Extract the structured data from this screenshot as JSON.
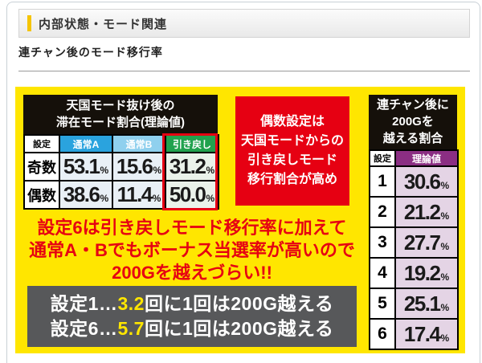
{
  "header": {
    "section_title": "内部状態・モード関連",
    "subtitle": "連チャン後のモード移行率"
  },
  "unit": "%",
  "left_table": {
    "title": [
      "天国モード抜け後の",
      "滞在モード割合(理論値)"
    ],
    "headers": [
      "設定",
      "通常A",
      "通常B",
      "引き戻し"
    ],
    "rows": [
      {
        "label": "奇数",
        "values": [
          "53.1",
          "15.6",
          "31.2"
        ]
      },
      {
        "label": "偶数",
        "values": [
          "38.6",
          "11.4",
          "50.0"
        ]
      }
    ]
  },
  "side_note": {
    "lines": [
      "偶数設定は",
      "天国モードからの",
      "引き戻しモード",
      "移行割合が高め"
    ]
  },
  "right_table": {
    "title": [
      "連チャン後に",
      "200Gを",
      "越える割合"
    ],
    "headers": [
      "設定",
      "理論値"
    ],
    "rows": [
      {
        "setting": "1",
        "value": "30.6"
      },
      {
        "setting": "2",
        "value": "21.2"
      },
      {
        "setting": "3",
        "value": "27.7"
      },
      {
        "setting": "4",
        "value": "19.2"
      },
      {
        "setting": "5",
        "value": "25.1"
      },
      {
        "setting": "6",
        "value": "17.4"
      }
    ]
  },
  "warning": {
    "lines": [
      "設定6は引き戻しモード移行率に加えて",
      "通常A・Bでもボーナス当選率が高いので",
      "200Gを越えづらい!!"
    ]
  },
  "summary": {
    "lines": [
      {
        "pre": "設定1…",
        "num": "3.2",
        "post": "回に1回は200G越える"
      },
      {
        "pre": "設定6…",
        "num": "5.7",
        "post": "回に1回は200G越える"
      }
    ]
  },
  "colors": {
    "accent_yellow": "#ffe600",
    "accent_red": "#e60012",
    "normal_a_blue": "#2aa3de",
    "normal_b_blue": "#8fd0ee",
    "hikimodoshi_green": "#21a24e",
    "theory_purple": "#8b2e83",
    "panel_gray": "#57585a"
  }
}
